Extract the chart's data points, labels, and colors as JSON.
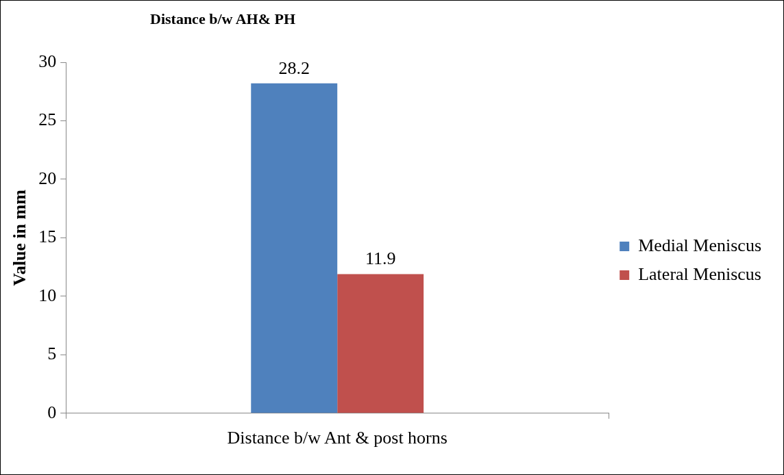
{
  "chart_data": {
    "type": "bar",
    "title": "Distance b/w AH& PH",
    "ylabel": "Value in mm",
    "categories": [
      "Distance b/w Ant & post horns"
    ],
    "series": [
      {
        "name": "Medial Meniscus",
        "color": "#4f81bd",
        "values": [
          28.2
        ]
      },
      {
        "name": "Lateral Meniscus",
        "color": "#c0504d",
        "values": [
          11.9
        ]
      }
    ],
    "ylim": [
      0,
      30
    ],
    "yticks": [
      0,
      5,
      10,
      15,
      20,
      25,
      30
    ],
    "grid": false,
    "legend": "right",
    "data_labels": true
  }
}
